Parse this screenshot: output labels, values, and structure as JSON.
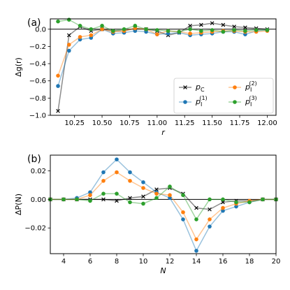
{
  "chart_data": [
    {
      "type": "line",
      "panel_label": "(a)",
      "xlabel": "r",
      "ylabel": "Δg(r)",
      "xlim": [
        10.03,
        12.08
      ],
      "ylim": [
        -1.0,
        0.12
      ],
      "xticks": [
        10.25,
        10.5,
        10.75,
        11.0,
        11.25,
        11.5,
        11.75,
        12.0
      ],
      "xtick_labels": [
        "10.25",
        "10.50",
        "10.75",
        "11.00",
        "11.25",
        "11.50",
        "11.75",
        "12.00"
      ],
      "yticks": [
        -1.0,
        -0.8,
        -0.6,
        -0.4,
        -0.2,
        0.0
      ],
      "ytick_labels": [
        "−1.0",
        "−0.8",
        "−0.6",
        "−0.4",
        "−0.2",
        "0.0"
      ],
      "grid": false,
      "legend_position": "bottom-right",
      "x": [
        10.1,
        10.2,
        10.3,
        10.4,
        10.5,
        10.6,
        10.7,
        10.8,
        10.9,
        11.0,
        11.1,
        11.2,
        11.3,
        11.4,
        11.5,
        11.6,
        11.7,
        11.8,
        11.9,
        12.0
      ],
      "series": [
        {
          "name": "p",
          "sub": "C",
          "sup": "",
          "color": "#000000",
          "marker": "x",
          "values": [
            -0.95,
            -0.07,
            0.03,
            -0.02,
            0.0,
            -0.02,
            -0.02,
            0.01,
            0.0,
            -0.02,
            -0.07,
            -0.04,
            0.04,
            0.05,
            0.07,
            0.05,
            0.03,
            0.02,
            0.01,
            0.0
          ]
        },
        {
          "name": "p",
          "sub": "I",
          "sup": "(1)",
          "color": "#1f77b4",
          "marker": "o",
          "values": [
            -0.66,
            -0.25,
            -0.12,
            -0.1,
            0.0,
            -0.05,
            -0.04,
            -0.02,
            -0.03,
            -0.06,
            -0.05,
            -0.04,
            -0.07,
            -0.06,
            -0.05,
            -0.03,
            -0.03,
            -0.06,
            -0.02,
            -0.01
          ]
        },
        {
          "name": "p",
          "sub": "I",
          "sup": "(2)",
          "color": "#ff7f0e",
          "marker": "o",
          "values": [
            -0.54,
            -0.18,
            -0.09,
            -0.07,
            0.0,
            -0.03,
            -0.02,
            0.01,
            0.0,
            -0.06,
            -0.02,
            -0.03,
            -0.05,
            -0.04,
            -0.03,
            -0.02,
            -0.02,
            -0.03,
            -0.03,
            -0.02
          ]
        },
        {
          "name": "p",
          "sub": "I",
          "sup": "(3)",
          "color": "#2ca02c",
          "marker": "o",
          "values": [
            0.09,
            0.11,
            0.04,
            0.0,
            0.04,
            -0.02,
            0.0,
            0.04,
            0.0,
            -0.01,
            -0.02,
            -0.03,
            0.0,
            -0.02,
            -0.01,
            -0.03,
            -0.01,
            -0.02,
            -0.01,
            -0.01
          ]
        }
      ]
    },
    {
      "type": "line",
      "panel_label": "(b)",
      "xlabel": "N",
      "ylabel": "ΔP(N)",
      "xlim": [
        3,
        20
      ],
      "ylim": [
        -0.038,
        0.031
      ],
      "xticks": [
        4,
        6,
        8,
        10,
        12,
        14,
        16,
        18,
        20
      ],
      "xtick_labels": [
        "4",
        "6",
        "8",
        "10",
        "12",
        "14",
        "16",
        "18",
        "20"
      ],
      "yticks": [
        -0.02,
        0.0,
        0.02
      ],
      "ytick_labels": [
        "−0.02",
        "0.00",
        "0.02"
      ],
      "grid": false,
      "x": [
        3,
        4,
        5,
        6,
        7,
        8,
        9,
        10,
        11,
        12,
        13,
        14,
        15,
        16,
        17,
        18,
        19,
        20
      ],
      "series": [
        {
          "name": "p",
          "sub": "C",
          "sup": "",
          "color": "#000000",
          "marker": "x",
          "values": [
            0.0,
            0.0,
            0.0,
            0.0,
            0.0,
            -0.001,
            0.001,
            0.002,
            0.007,
            0.008,
            0.004,
            -0.006,
            -0.007,
            -0.002,
            -0.001,
            -0.001,
            0.0,
            0.0
          ]
        },
        {
          "name": "p",
          "sub": "I",
          "sup": "(1)",
          "color": "#1f77b4",
          "marker": "o",
          "values": [
            0.0,
            0.0,
            0.001,
            0.005,
            0.019,
            0.028,
            0.019,
            0.012,
            0.005,
            0.001,
            -0.014,
            -0.036,
            -0.019,
            -0.008,
            -0.005,
            -0.002,
            0.0,
            0.0
          ]
        },
        {
          "name": "p",
          "sub": "I",
          "sup": "(2)",
          "color": "#ff7f0e",
          "marker": "o",
          "values": [
            0.0,
            0.0,
            0.0,
            0.003,
            0.013,
            0.019,
            0.013,
            0.008,
            0.004,
            0.003,
            -0.009,
            -0.028,
            -0.014,
            -0.006,
            -0.003,
            -0.001,
            0.0,
            0.0
          ]
        },
        {
          "name": "p",
          "sub": "I",
          "sup": "(3)",
          "color": "#2ca02c",
          "marker": "o",
          "values": [
            0.0,
            0.0,
            0.0,
            -0.001,
            0.004,
            0.004,
            -0.002,
            -0.003,
            0.001,
            0.009,
            0.003,
            -0.014,
            0.0,
            0.0,
            -0.002,
            -0.002,
            0.0,
            0.0
          ]
        }
      ]
    }
  ]
}
